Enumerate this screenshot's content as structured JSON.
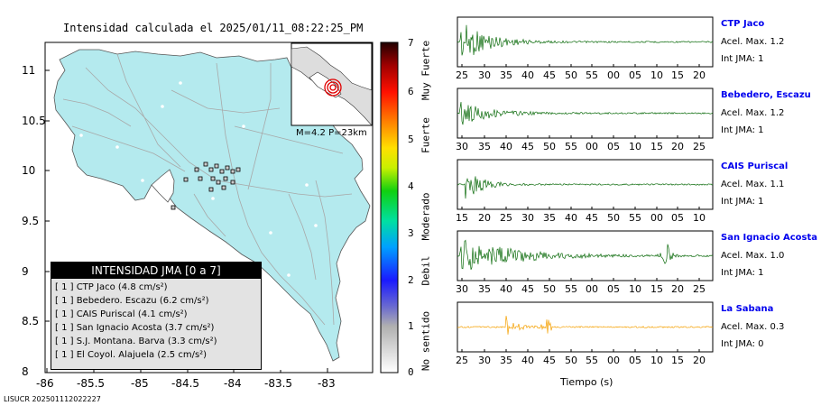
{
  "map": {
    "title": "Intensidad calculada el 2025/01/11_08:22:25_PM",
    "lat_ticks": [
      "11",
      "10.5",
      "10",
      "9.5",
      "9",
      "8.5",
      "8"
    ],
    "lon_ticks": [
      "-86",
      "-85.5",
      "-85",
      "-84.5",
      "-84",
      "-83.5",
      "-83"
    ],
    "inset_label": "M=4.2 P=23km",
    "footer_id": "LISUCR 202501112022227",
    "colors": {
      "land": "#b4eaee",
      "sea": "#ffffff",
      "roads": "#aaaaaa",
      "border": "#555555"
    }
  },
  "colorbar": {
    "ticks": [
      "7",
      "6",
      "5",
      "4",
      "3",
      "2",
      "1",
      "0"
    ],
    "category_labels": [
      "Muy Fuerte",
      "Fuerte",
      "Moderado",
      "Debil",
      "No sentido"
    ]
  },
  "legend": {
    "title": "INTENSIDAD JMA [0 a 7]",
    "rows": [
      "[ 1 ]  CTP Jaco (4.8 cm/s²)",
      "[ 1 ]  Bebedero. Escazu (6.2 cm/s²)",
      "[ 1 ]  CAIS Puriscal (4.1 cm/s²)",
      "[ 1 ]  San Ignacio Acosta (3.7 cm/s²)",
      "[ 1 ]  S.J. Montana. Barva (3.3 cm/s²)",
      "[ 1 ]  El Coyol. Alajuela (2.5 cm/s²)"
    ]
  },
  "traces": {
    "xlabel": "Tiempo (s)",
    "stations": [
      {
        "name": "CTP Jaco",
        "acel": "Acel. Max. 1.2",
        "jma": "Int JMA: 1",
        "color": "#0a6a0a",
        "ticks": [
          "25",
          "30",
          "35",
          "40",
          "45",
          "50",
          "55",
          "00",
          "05",
          "10",
          "15",
          "20"
        ]
      },
      {
        "name": "Bebedero, Escazu",
        "acel": "Acel. Max. 1.2",
        "jma": "Int JMA: 1",
        "color": "#0a6a0a",
        "ticks": [
          "30",
          "35",
          "40",
          "45",
          "50",
          "55",
          "00",
          "05",
          "10",
          "15",
          "20",
          "25"
        ]
      },
      {
        "name": "CAIS Puriscal",
        "acel": "Acel. Max. 1.1",
        "jma": "Int JMA: 1",
        "color": "#0a6a0a",
        "ticks": [
          "15",
          "20",
          "25",
          "30",
          "35",
          "40",
          "45",
          "50",
          "55",
          "00",
          "05",
          "10"
        ]
      },
      {
        "name": "San Ignacio Acosta",
        "acel": "Acel. Max. 1.0",
        "jma": "Int JMA: 1",
        "color": "#0a6a0a",
        "ticks": [
          "30",
          "35",
          "40",
          "45",
          "50",
          "55",
          "00",
          "05",
          "10",
          "15",
          "20",
          "25"
        ]
      },
      {
        "name": "La Sabana",
        "acel": "Acel. Max. 0.3",
        "jma": "Int JMA: 0",
        "color": "#f5a000",
        "ticks": [
          "25",
          "30",
          "35",
          "40",
          "45",
          "50",
          "55",
          "00",
          "05",
          "10",
          "15",
          "20"
        ]
      }
    ]
  }
}
